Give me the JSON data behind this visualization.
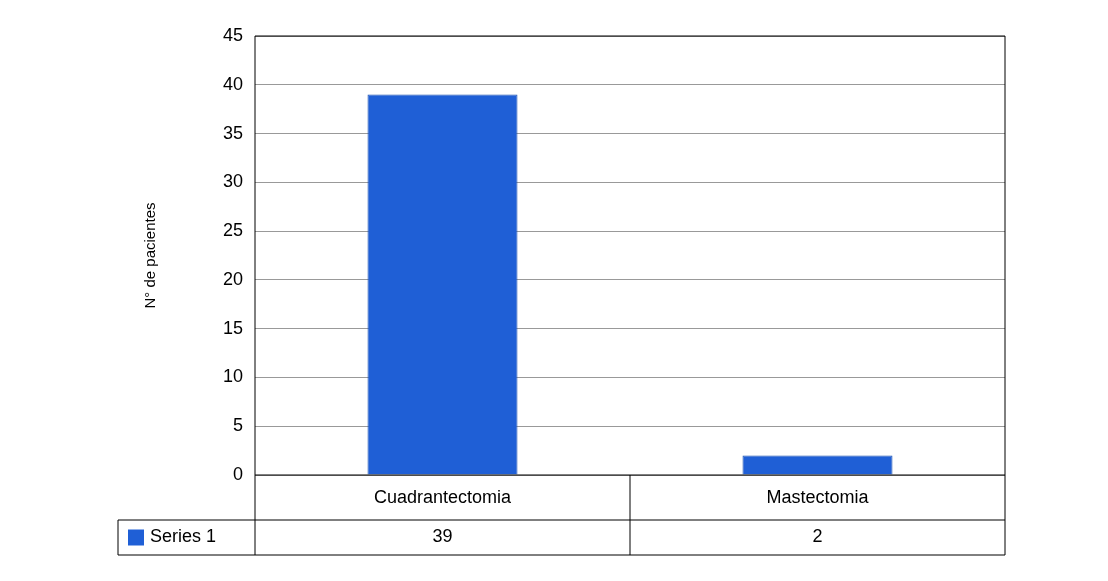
{
  "chart_data": {
    "type": "bar",
    "ylabel": "N° de pacientes",
    "categories": [
      "Cuadrantectomia",
      "Mastectomia"
    ],
    "series": [
      {
        "name": "Series 1",
        "color": "#1f5fd6",
        "values": [
          39,
          2
        ]
      }
    ],
    "ylim": [
      0,
      45
    ],
    "yticks": [
      0,
      5,
      10,
      15,
      20,
      25,
      30,
      35,
      40,
      45
    ],
    "grid": "y",
    "legend": "bottom",
    "data_labels": true
  }
}
